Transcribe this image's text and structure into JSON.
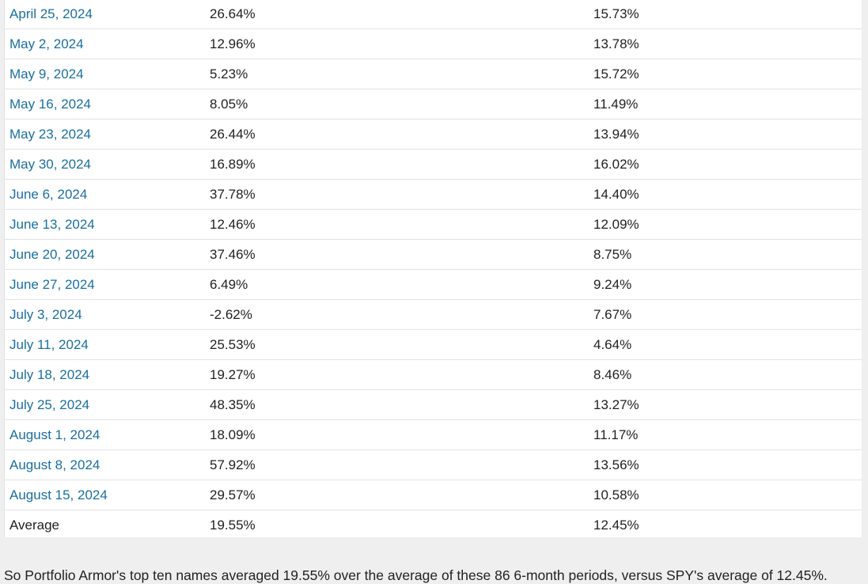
{
  "table": {
    "rows": [
      {
        "date": "April 25, 2024",
        "portfolio": "26.64%",
        "spy": "15.73%"
      },
      {
        "date": "May 2, 2024",
        "portfolio": "12.96%",
        "spy": "13.78%"
      },
      {
        "date": "May 9, 2024",
        "portfolio": "5.23%",
        "spy": "15.72%"
      },
      {
        "date": "May 16, 2024",
        "portfolio": "8.05%",
        "spy": "11.49%"
      },
      {
        "date": "May 23, 2024",
        "portfolio": "26.44%",
        "spy": "13.94%"
      },
      {
        "date": "May 30, 2024",
        "portfolio": "16.89%",
        "spy": "16.02%"
      },
      {
        "date": "June 6, 2024",
        "portfolio": "37.78%",
        "spy": "14.40%"
      },
      {
        "date": "June 13, 2024",
        "portfolio": "12.46%",
        "spy": "12.09%"
      },
      {
        "date": "June 20, 2024",
        "portfolio": "37.46%",
        "spy": "8.75%"
      },
      {
        "date": "June 27, 2024",
        "portfolio": "6.49%",
        "spy": "9.24%"
      },
      {
        "date": "July 3, 2024",
        "portfolio": "-2.62%",
        "spy": "7.67%"
      },
      {
        "date": "July 11, 2024",
        "portfolio": "25.53%",
        "spy": "4.64%"
      },
      {
        "date": "July 18, 2024",
        "portfolio": "19.27%",
        "spy": "8.46%"
      },
      {
        "date": "July 25, 2024",
        "portfolio": "48.35%",
        "spy": "13.27%"
      },
      {
        "date": "August 1, 2024",
        "portfolio": "18.09%",
        "spy": "11.17%"
      },
      {
        "date": "August 8, 2024",
        "portfolio": "57.92%",
        "spy": "13.56%"
      },
      {
        "date": "August 15, 2024",
        "portfolio": "29.57%",
        "spy": "10.58%"
      }
    ],
    "average": {
      "label": "Average",
      "portfolio": "19.55%",
      "spy": "12.45%"
    }
  },
  "summary_text": "So Portfolio Armor's top ten names averaged 19.55% over the average of these 86 6-month periods, versus SPY's average of 12.45%.",
  "colors": {
    "link": "#1a6fa0",
    "text": "#222222",
    "row_border": "#e3e3e3",
    "page_background": "#efefef",
    "table_background": "#ffffff"
  }
}
